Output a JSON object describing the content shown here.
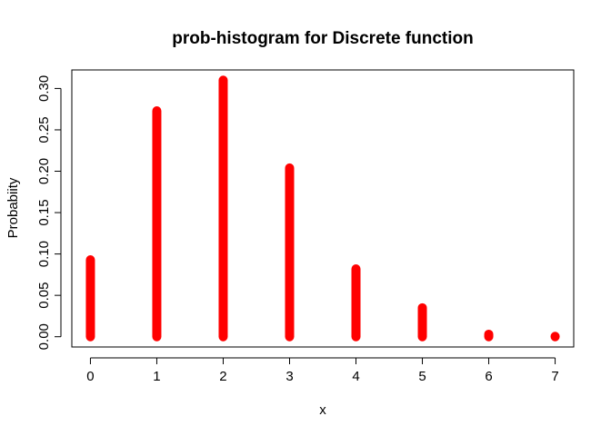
{
  "chart_data": {
    "type": "bar",
    "title": "prob-histogram for Discrete function",
    "xlabel": "x",
    "ylabel": "Probabiity",
    "x": [
      0,
      1,
      2,
      3,
      4,
      5,
      6,
      7
    ],
    "values": [
      0.093,
      0.273,
      0.31,
      0.204,
      0.082,
      0.035,
      0.003,
      0.0005
    ],
    "xlim": [
      -0.28,
      7.28
    ],
    "ylim": [
      -0.0124,
      0.3224
    ],
    "x_ticks": [
      0,
      1,
      2,
      3,
      4,
      5,
      6,
      7
    ],
    "y_ticks": [
      0.0,
      0.05,
      0.1,
      0.15,
      0.2,
      0.25,
      0.3
    ],
    "y_tick_labels": [
      "0.00",
      "0.05",
      "0.10",
      "0.15",
      "0.20",
      "0.25",
      "0.30"
    ],
    "grid": false,
    "legend": "none",
    "colors": {
      "bar": "#ff0000",
      "axis": "#000000",
      "background": "#ffffff"
    }
  }
}
